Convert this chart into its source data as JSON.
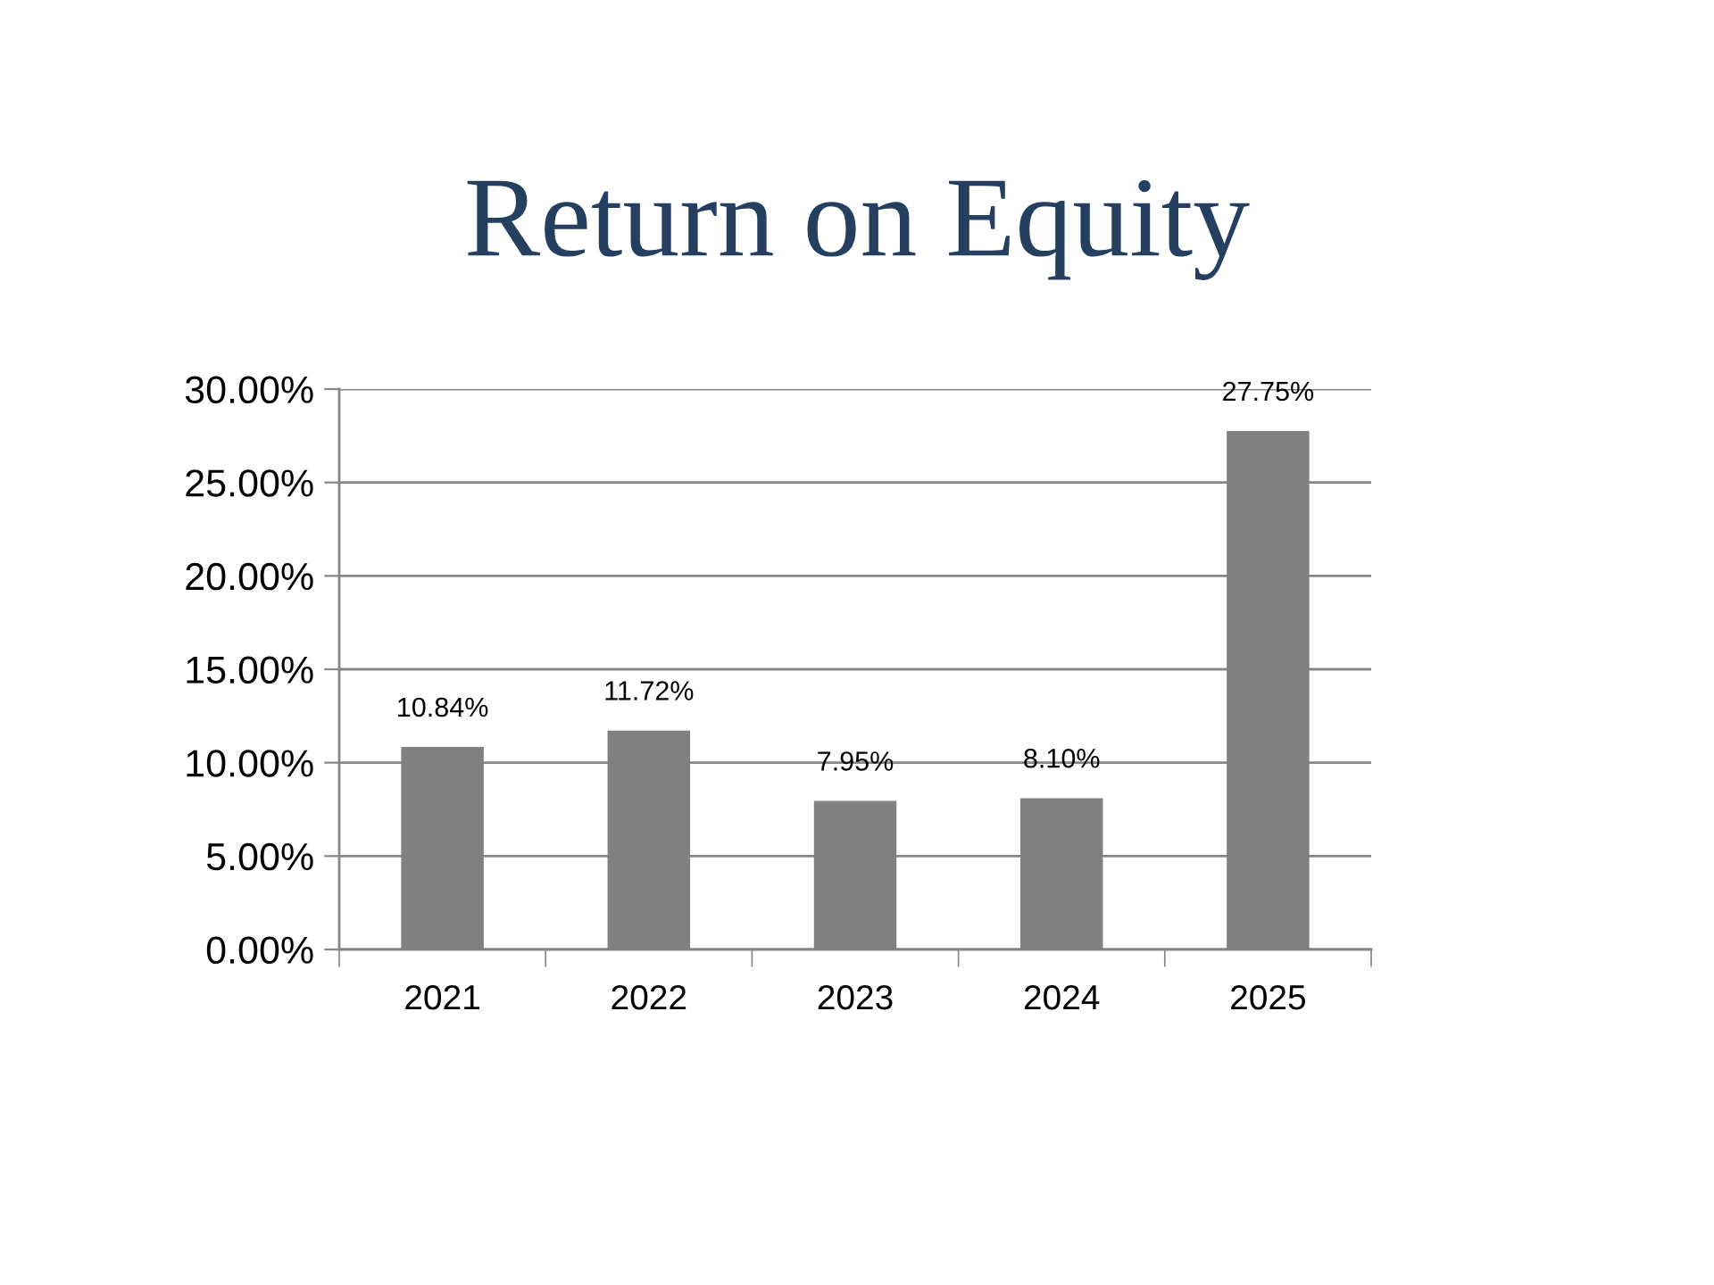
{
  "chart_data": {
    "type": "bar",
    "title": "Return on Equity",
    "categories": [
      "2021",
      "2022",
      "2023",
      "2024",
      "2025"
    ],
    "values": [
      10.84,
      11.72,
      7.95,
      8.1,
      27.75
    ],
    "value_labels": [
      "10.84%",
      "11.72%",
      "7.95%",
      "8.10%",
      "27.75%"
    ],
    "color": "#808080",
    "ylim": [
      0,
      30
    ],
    "yticks": [
      {
        "value": 0,
        "label": "0.00%"
      },
      {
        "value": 5,
        "label": "5.00%"
      },
      {
        "value": 10,
        "label": "10.00%"
      },
      {
        "value": 15,
        "label": "15.00%"
      },
      {
        "value": 20,
        "label": "20.00%"
      },
      {
        "value": 25,
        "label": "25.00%"
      },
      {
        "value": 30,
        "label": "30.00%"
      }
    ],
    "grid": "y"
  }
}
